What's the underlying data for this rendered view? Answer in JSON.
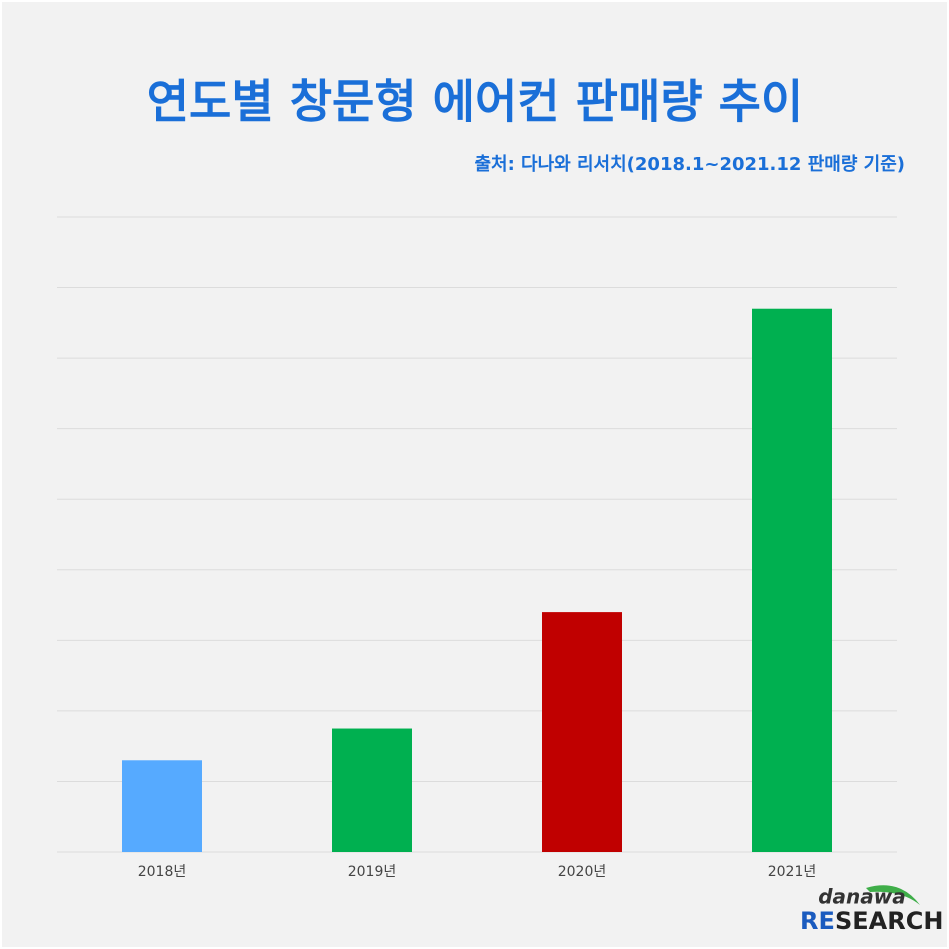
{
  "chart_data": {
    "type": "bar",
    "title": "연도별 창문형 에어컨 판매량 추이",
    "subtitle": "출처: 다나와 리서치(2018.1~2021.12 판매량 기준)",
    "categories": [
      "2018년",
      "2019년",
      "2020년",
      "2021년"
    ],
    "values": [
      1.3,
      1.75,
      3.4,
      7.7
    ],
    "colors": [
      "#56aaff",
      "#00b050",
      "#c00000",
      "#00b050"
    ],
    "ylim": [
      0,
      9
    ],
    "yticks": [
      0,
      1,
      2,
      3,
      4,
      5,
      6,
      7,
      8,
      9
    ],
    "grid": true,
    "logo": {
      "top": "danawa",
      "bottom_accent": "RE",
      "bottom_rest": "SEARCH"
    }
  }
}
